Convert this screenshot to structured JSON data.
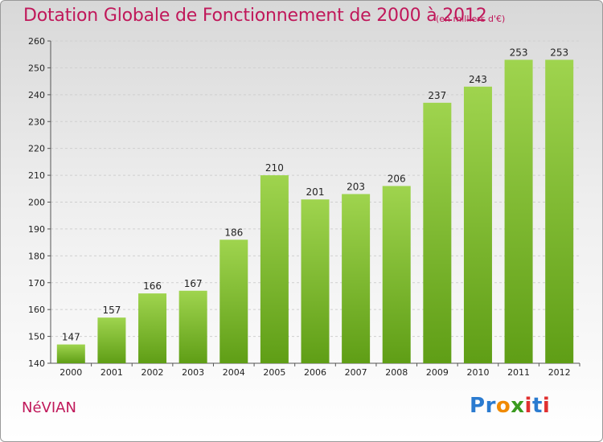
{
  "title": "Dotation Globale de Fonctionnement de 2000 à 2012",
  "subtitle": "(en milliers d'€)",
  "commune": "NéVIAN",
  "logo": {
    "letters": [
      "P",
      "r",
      "o",
      "x",
      "i",
      "t",
      "i"
    ],
    "colors": [
      "#2b7bd0",
      "#2b7bd0",
      "#f08a00",
      "#3a9a1f",
      "#e03030",
      "#2b7bd0",
      "#e03030"
    ]
  },
  "chart_data": {
    "type": "bar",
    "title": "Dotation Globale de Fonctionnement de 2000 à 2012",
    "subtitle": "(en milliers d'€)",
    "categories": [
      "2000",
      "2001",
      "2002",
      "2003",
      "2004",
      "2005",
      "2006",
      "2007",
      "2008",
      "2009",
      "2010",
      "2011",
      "2012"
    ],
    "values": [
      147,
      157,
      166,
      167,
      186,
      210,
      201,
      203,
      206,
      237,
      243,
      253,
      253
    ],
    "ylim": [
      140,
      260
    ],
    "yticks": [
      140,
      150,
      160,
      170,
      180,
      190,
      200,
      210,
      220,
      230,
      240,
      250,
      260
    ],
    "grid": true,
    "bar_color": "#7fc030"
  }
}
